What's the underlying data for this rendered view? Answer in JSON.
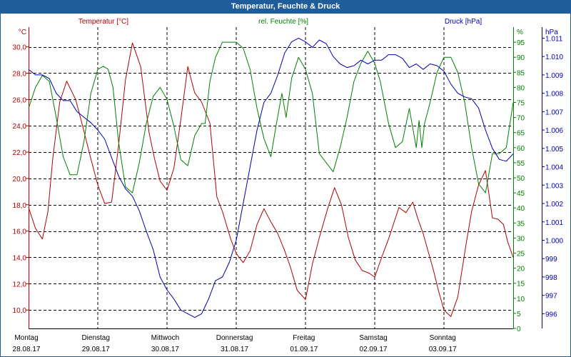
{
  "title": "Temperatur, Feuchte & Druck",
  "colors": {
    "title_bg": "#1f5c9a",
    "temperature": "#b00000",
    "humidity": "#008000",
    "pressure": "#0000b0",
    "grid": "#000000"
  },
  "chart_data": {
    "type": "line",
    "title": "Temperatur, Feuchte & Druck",
    "x_categories": [
      {
        "day": "Montag",
        "date": "28.08.17"
      },
      {
        "day": "Dienstag",
        "date": "29.08.17"
      },
      {
        "day": "Mittwoch",
        "date": "30.08.17"
      },
      {
        "day": "Donnerstag",
        "date": "31.08.17"
      },
      {
        "day": "Freitag",
        "date": "01.09.17"
      },
      {
        "day": "Samstag",
        "date": "02.09.17"
      },
      {
        "day": "Sonntag",
        "date": "03.09.17"
      }
    ],
    "x_range_days": [
      0,
      7
    ],
    "axes": {
      "temperature": {
        "label": "Temperatur [°C]",
        "unit": "°C",
        "ylim": [
          8.6,
          31.5
        ],
        "ticks": [
          "10,0",
          "12,0",
          "14,0",
          "16,0",
          "18,0",
          "20,0",
          "22,0",
          "24,0",
          "26,0",
          "28,0",
          "30,0"
        ]
      },
      "humidity": {
        "label": "rel. Feuchte [%]",
        "unit": "%",
        "ylim": [
          0,
          100
        ],
        "ticks": [
          "0",
          "5",
          "10",
          "15",
          "20",
          "25",
          "30",
          "35",
          "40",
          "45",
          "50",
          "55",
          "60",
          "65",
          "70",
          "75",
          "80",
          "85",
          "90",
          "95"
        ]
      },
      "pressure": {
        "label": "Druck [hPa]",
        "unit": "hPa",
        "ylim": [
          995.2,
          1011.6
        ],
        "ticks": [
          "996",
          "997",
          "998",
          "999",
          "1.000",
          "1.001",
          "1.002",
          "1.003",
          "1.004",
          "1.005",
          "1.006",
          "1.007",
          "1.008",
          "1.009",
          "1.010",
          "1.011"
        ]
      }
    },
    "series": [
      {
        "name": "Temperatur",
        "axis": "temperature",
        "color": "#b00000",
        "x": [
          0,
          0.1,
          0.2,
          0.28,
          0.35,
          0.45,
          0.55,
          0.68,
          0.78,
          0.9,
          1.0,
          1.1,
          1.2,
          1.3,
          1.4,
          1.5,
          1.62,
          1.74,
          1.82,
          1.9,
          2.0,
          2.1,
          2.2,
          2.3,
          2.4,
          2.5,
          2.62,
          2.72,
          2.8,
          2.92,
          3.0,
          3.1,
          3.2,
          3.3,
          3.4,
          3.5,
          3.6,
          3.7,
          3.78,
          3.88,
          4.0,
          4.1,
          4.2,
          4.32,
          4.42,
          4.52,
          4.62,
          4.72,
          4.82,
          4.92,
          5.0,
          5.1,
          5.2,
          5.35,
          5.45,
          5.55,
          5.62,
          5.7,
          5.78,
          5.85,
          5.92,
          6.0,
          6.1,
          6.2,
          6.32,
          6.4,
          6.5,
          6.6,
          6.7,
          6.78,
          6.86,
          6.92,
          7.0
        ],
        "values": [
          17.8,
          16.2,
          15.4,
          17.5,
          21.5,
          25.8,
          27.4,
          26.0,
          24.0,
          21.5,
          19.5,
          18.1,
          18.2,
          22.5,
          27.5,
          30.3,
          28.5,
          23.5,
          21.5,
          19.8,
          19.1,
          20.8,
          24.5,
          28.5,
          26.5,
          25.8,
          24.2,
          18.6,
          17.5,
          15.4,
          14.3,
          13.6,
          14.5,
          16.5,
          17.7,
          16.7,
          15.8,
          14.5,
          13.3,
          11.5,
          10.8,
          13.5,
          15.5,
          17.7,
          19.3,
          18.0,
          15.5,
          13.8,
          13.0,
          12.8,
          12.5,
          14.0,
          15.4,
          17.8,
          17.4,
          18.2,
          17.0,
          15.8,
          14.3,
          13.0,
          11.5,
          10.0,
          9.5,
          11.0,
          15.0,
          17.5,
          19.5,
          20.6,
          17.0,
          16.9,
          16.5,
          15.2,
          14.0
        ]
      },
      {
        "name": "rel. Feuchte",
        "axis": "humidity",
        "color": "#008000",
        "x": [
          0,
          0.1,
          0.2,
          0.3,
          0.4,
          0.5,
          0.6,
          0.7,
          0.8,
          0.9,
          1.0,
          1.08,
          1.15,
          1.22,
          1.3,
          1.4,
          1.5,
          1.6,
          1.7,
          1.8,
          1.9,
          2.0,
          2.1,
          2.2,
          2.3,
          2.4,
          2.5,
          2.55,
          2.62,
          2.7,
          2.8,
          2.9,
          3.0,
          3.1,
          3.2,
          3.3,
          3.4,
          3.5,
          3.58,
          3.66,
          3.72,
          3.8,
          3.9,
          4.0,
          4.1,
          4.2,
          4.3,
          4.4,
          4.5,
          4.6,
          4.7,
          4.8,
          4.9,
          5.0,
          5.08,
          5.2,
          5.3,
          5.4,
          5.5,
          5.6,
          5.64,
          5.68,
          5.72,
          5.8,
          5.9,
          6.0,
          6.1,
          6.2,
          6.3,
          6.4,
          6.5,
          6.6,
          6.7,
          6.8,
          6.9,
          7.0
        ],
        "values": [
          73,
          80,
          84,
          82,
          70,
          57,
          51,
          51,
          62,
          78,
          86,
          87,
          86,
          80,
          62,
          47,
          45,
          55,
          68,
          77,
          80,
          76,
          67,
          56,
          54,
          64,
          68,
          68,
          82,
          90,
          95,
          95,
          95,
          93,
          86,
          73,
          63,
          57,
          68,
          78,
          70,
          83,
          90,
          86,
          78,
          58,
          55,
          52,
          60,
          70,
          82,
          88,
          92,
          88,
          82,
          68,
          60,
          62,
          73,
          60,
          69,
          60,
          68,
          75,
          85,
          90,
          90,
          85,
          75,
          60,
          48,
          45,
          58,
          58,
          60,
          75
        ]
      },
      {
        "name": "Druck",
        "axis": "pressure",
        "color": "#0000b0",
        "x": [
          0,
          0.1,
          0.2,
          0.3,
          0.4,
          0.5,
          0.6,
          0.7,
          0.8,
          0.9,
          1.0,
          1.1,
          1.2,
          1.3,
          1.4,
          1.5,
          1.6,
          1.7,
          1.8,
          1.9,
          2.0,
          2.1,
          2.2,
          2.3,
          2.4,
          2.5,
          2.6,
          2.7,
          2.8,
          2.9,
          3.0,
          3.1,
          3.2,
          3.3,
          3.4,
          3.5,
          3.6,
          3.7,
          3.8,
          3.9,
          4.0,
          4.1,
          4.2,
          4.3,
          4.4,
          4.5,
          4.6,
          4.7,
          4.8,
          4.9,
          5.0,
          5.1,
          5.2,
          5.3,
          5.4,
          5.5,
          5.6,
          5.7,
          5.8,
          5.9,
          6.0,
          6.1,
          6.2,
          6.3,
          6.4,
          6.5,
          6.6,
          6.7,
          6.8,
          6.9,
          7.0
        ],
        "values": [
          1009.3,
          1009.0,
          1009.0,
          1008.8,
          1008.0,
          1007.6,
          1007.6,
          1007.0,
          1006.7,
          1006.4,
          1006.0,
          1005.5,
          1004.5,
          1003.5,
          1002.8,
          1002.4,
          1001.6,
          1000.5,
          999.5,
          998.0,
          997.3,
          996.8,
          996.2,
          996.0,
          995.8,
          996.0,
          996.8,
          997.8,
          998.0,
          998.8,
          1000.0,
          1002.0,
          1004.0,
          1006.0,
          1007.5,
          1008.0,
          1009.0,
          1010.2,
          1010.8,
          1011.0,
          1010.8,
          1010.5,
          1010.9,
          1010.7,
          1010.0,
          1009.6,
          1009.4,
          1009.5,
          1009.8,
          1009.6,
          1009.8,
          1009.8,
          1010.1,
          1010.1,
          1009.9,
          1009.4,
          1009.6,
          1009.3,
          1009.6,
          1009.5,
          1009.2,
          1008.5,
          1008.0,
          1007.8,
          1007.7,
          1007.2,
          1006.0,
          1005.0,
          1004.4,
          1004.3,
          1004.7
        ]
      }
    ]
  }
}
